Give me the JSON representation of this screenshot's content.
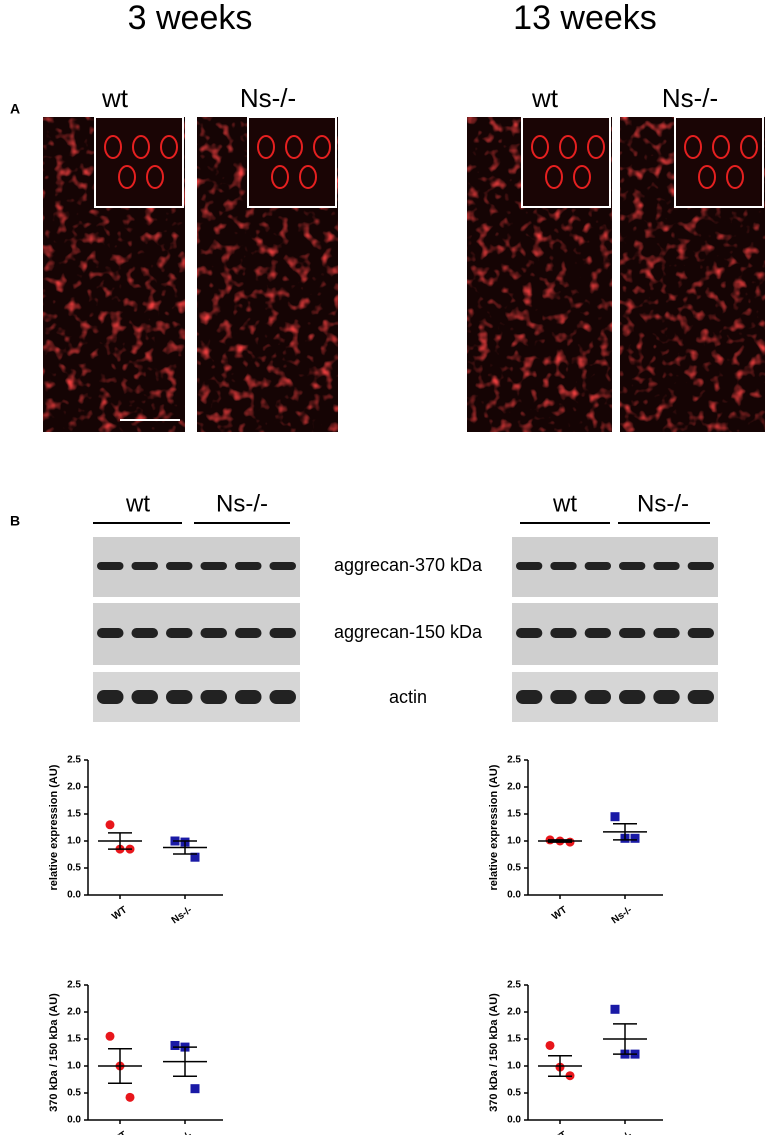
{
  "panel_labels": [
    "A",
    "B"
  ],
  "column_titles": [
    "3 weeks",
    "13 weeks"
  ],
  "image_labels": [
    "wt",
    "Ns-/-",
    "wt",
    "Ns-/-"
  ],
  "lane_labels": [
    "wt",
    "Ns-/-",
    "wt",
    "Ns-/-"
  ],
  "blot_labels": [
    "aggrecan-370 kDa",
    "aggrecan-150 kDa",
    "actin"
  ],
  "chart_data": [
    {
      "type": "scatter",
      "ylabel": "relative expression (AU)",
      "categories": [
        "WT",
        "Ns-/-"
      ],
      "ylim": [
        0,
        2.5
      ],
      "yticks": [
        {
          "value": 0,
          "label": "0.0"
        },
        {
          "value": 0.5,
          "label": "0.5"
        },
        {
          "value": 1,
          "label": "1.0"
        },
        {
          "value": 1.5,
          "label": "1.5"
        },
        {
          "value": 2,
          "label": "2.0"
        },
        {
          "value": 2.5,
          "label": "2.5"
        }
      ],
      "groups": [
        {
          "color": "#e8161b",
          "marker": "circle",
          "points": [
            1.3,
            0.85,
            0.85
          ],
          "mean": 1.0,
          "error": 0.15
        },
        {
          "color": "#1a1aa6",
          "marker": "square",
          "points": [
            1.0,
            0.98,
            0.7
          ],
          "mean": 0.88,
          "error": 0.12
        }
      ]
    },
    {
      "type": "scatter",
      "ylabel": "relative expression (AU)",
      "categories": [
        "WT",
        "Ns-/-"
      ],
      "ylim": [
        0,
        2.5
      ],
      "yticks": [
        {
          "value": 0,
          "label": "0.0"
        },
        {
          "value": 0.5,
          "label": "0.5"
        },
        {
          "value": 1,
          "label": "1.0"
        },
        {
          "value": 1.5,
          "label": "1.5"
        },
        {
          "value": 2,
          "label": "2.0"
        },
        {
          "value": 2.5,
          "label": "2.5"
        }
      ],
      "groups": [
        {
          "color": "#e8161b",
          "marker": "circle",
          "points": [
            1.02,
            1.0,
            0.98
          ],
          "mean": 1.0,
          "error": 0.02
        },
        {
          "color": "#1a1aa6",
          "marker": "square",
          "points": [
            1.45,
            1.05,
            1.05
          ],
          "mean": 1.17,
          "error": 0.15
        }
      ]
    },
    {
      "type": "scatter",
      "ylabel": "370 kDa / 150 kDa (AU)",
      "categories": [
        "WT",
        "Ns-/-"
      ],
      "ylim": [
        0,
        2.5
      ],
      "yticks": [
        {
          "value": 0,
          "label": "0.0"
        },
        {
          "value": 0.5,
          "label": "0.5"
        },
        {
          "value": 1,
          "label": "1.0"
        },
        {
          "value": 1.5,
          "label": "1.5"
        },
        {
          "value": 2,
          "label": "2.0"
        },
        {
          "value": 2.5,
          "label": "2.5"
        }
      ],
      "groups": [
        {
          "color": "#e8161b",
          "marker": "circle",
          "points": [
            1.55,
            1.0,
            0.42
          ],
          "mean": 1.0,
          "error": 0.32
        },
        {
          "color": "#1a1aa6",
          "marker": "square",
          "points": [
            1.38,
            1.35,
            0.58
          ],
          "mean": 1.08,
          "error": 0.27
        }
      ]
    },
    {
      "type": "scatter",
      "ylabel": "370 kDa / 150 kDa (AU)",
      "categories": [
        "WT",
        "Ns-/-"
      ],
      "ylim": [
        0,
        2.5
      ],
      "yticks": [
        {
          "value": 0,
          "label": "0.0"
        },
        {
          "value": 0.5,
          "label": "0.5"
        },
        {
          "value": 1,
          "label": "1.0"
        },
        {
          "value": 1.5,
          "label": "1.5"
        },
        {
          "value": 2,
          "label": "2.0"
        },
        {
          "value": 2.5,
          "label": "2.5"
        }
      ],
      "groups": [
        {
          "color": "#e8161b",
          "marker": "circle",
          "points": [
            1.38,
            0.98,
            0.82
          ],
          "mean": 1.0,
          "error": 0.19
        },
        {
          "color": "#1a1aa6",
          "marker": "square",
          "points": [
            2.05,
            1.22,
            1.22
          ],
          "mean": 1.5,
          "error": 0.28
        }
      ]
    }
  ]
}
